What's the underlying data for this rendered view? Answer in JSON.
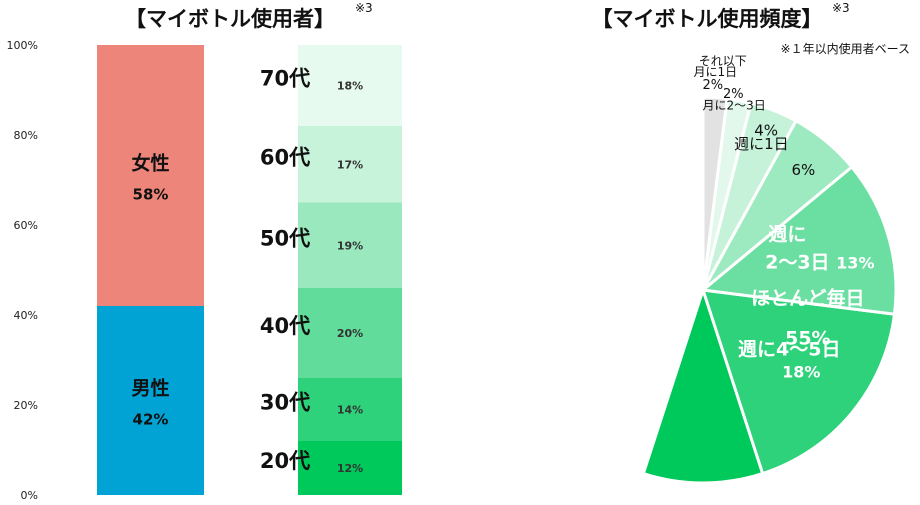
{
  "left_title": "【マイボトル使用者】",
  "left_note_mark": "※3",
  "right_title": "【マイボトル使用頻度】",
  "right_note_mark": "※3",
  "right_subnote": "※１年以内使用者ベース",
  "y_ticks": [
    "0%",
    "20%",
    "40%",
    "60%",
    "80%",
    "100%"
  ],
  "colors": {
    "female": "#EE857A",
    "male": "#00A3D4",
    "pie_main": "#00C95B",
    "pie_edge": "#ffffff"
  },
  "chart_data": [
    {
      "type": "bar",
      "stacked": true,
      "title": "【マイボトル使用者】",
      "ylim": [
        0,
        100
      ],
      "y_ticks": [
        "0%",
        "20%",
        "40%",
        "60%",
        "80%",
        "100%"
      ],
      "series": [
        {
          "name": "男性",
          "value": 42,
          "label": "42%",
          "color": "#00A3D4"
        },
        {
          "name": "女性",
          "value": 58,
          "label": "58%",
          "color": "#EE857A"
        }
      ]
    },
    {
      "type": "bar",
      "stacked": true,
      "ylim": [
        0,
        100
      ],
      "series": [
        {
          "name": "20代",
          "value": 12,
          "label": "12%",
          "color": "#00C95B"
        },
        {
          "name": "30代",
          "value": 14,
          "label": "14%",
          "color": "#2ED27A"
        },
        {
          "name": "40代",
          "value": 20,
          "label": "20%",
          "color": "#62DC9B"
        },
        {
          "name": "50代",
          "value": 19,
          "label": "19%",
          "color": "#99E8BE"
        },
        {
          "name": "60代",
          "value": 17,
          "label": "17%",
          "color": "#C8F3DB"
        },
        {
          "name": "70代",
          "value": 18,
          "label": "18%",
          "color": "#E6FAEF"
        }
      ]
    },
    {
      "type": "pie",
      "title": "【マイボトル使用頻度】",
      "note": "※１年以内使用者ベース",
      "slices": [
        {
          "label": "ほとんど毎日",
          "value": 55,
          "pct": "55%",
          "color": "#00C95B"
        },
        {
          "label": "週に4～5日",
          "value": 18,
          "pct": "18%",
          "color": "#2ED27A"
        },
        {
          "label_lines": [
            "週に",
            "2～3日"
          ],
          "value": 13,
          "pct": "13%",
          "color": "#6BDFA2"
        },
        {
          "label": "週に1日",
          "value": 6,
          "pct": "6%",
          "color": "#9DE9C0"
        },
        {
          "label": "月に2～3日",
          "value": 4,
          "pct": "4%",
          "color": "#C6F2DA"
        },
        {
          "label": "月に1日",
          "value": 2,
          "pct": "2%",
          "color": "#E3F8EC"
        },
        {
          "label": "それ以下",
          "value": 2,
          "pct": "2%",
          "color": "#E2E2E2"
        }
      ]
    }
  ]
}
